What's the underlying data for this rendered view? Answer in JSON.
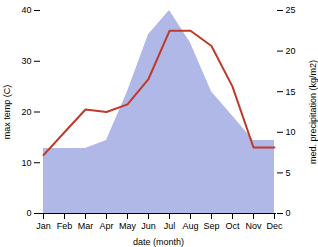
{
  "chart_data": {
    "type": "line",
    "categories": [
      "Jan",
      "Feb",
      "Mar",
      "Apr",
      "May",
      "Jun",
      "Jul",
      "Aug",
      "Sep",
      "Oct",
      "Nov",
      "Dec"
    ],
    "xlabel": "date (month)",
    "ylabel": "max temp (C)",
    "y2label": "med. precipitation (kg/m2)",
    "ylim": [
      0,
      40
    ],
    "yticks": [
      0,
      10,
      20,
      30,
      40
    ],
    "y2lim": [
      0,
      25
    ],
    "y2ticks": [
      0,
      5,
      10,
      15,
      20,
      25
    ],
    "series": [
      {
        "type": "area",
        "axis": "y2",
        "color": "#b0b8e8",
        "values": [
          8.0,
          8.0,
          8.0,
          9.0,
          15.0,
          22.0,
          25.0,
          21.0,
          15.0,
          12.0,
          9.0,
          9.0
        ]
      },
      {
        "type": "line",
        "color": "#c0392b",
        "values": [
          11.5,
          16.0,
          20.5,
          20.0,
          21.5,
          26.5,
          36.0,
          36.0,
          33.0,
          25.0,
          13.0,
          13.0
        ]
      }
    ]
  }
}
